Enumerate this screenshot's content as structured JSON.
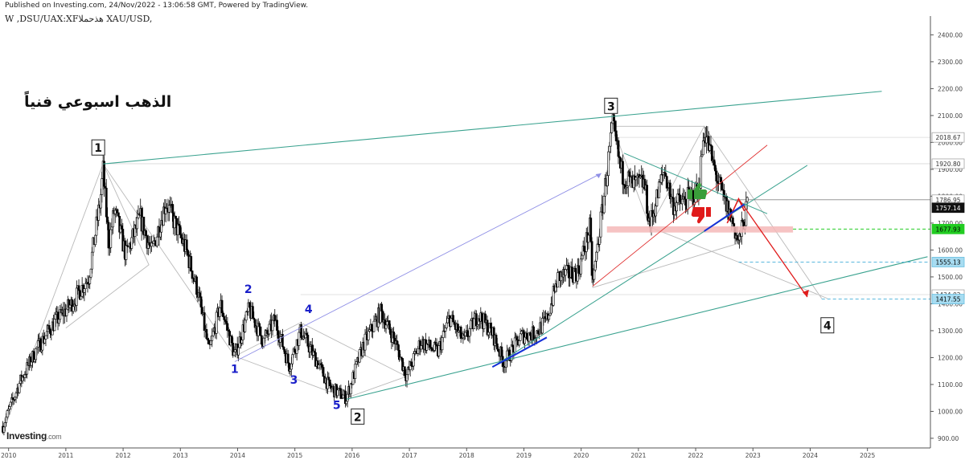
{
  "header": {
    "published": "Published on Investing.com, 24/Nov/2022 - 13:06:58 GMT, Powered by TradingView.",
    "symbol": "W ,DSU/UAX:XFهذحملا XAU/USD,"
  },
  "annotation_title": "الذهب اسبوعي فنياً",
  "logo": {
    "main": "Investing",
    "suffix": ".com"
  },
  "icons": {
    "thumbs_up": "thumbs-up-icon",
    "thumbs_down": "thumbs-down-icon"
  },
  "colors": {
    "candle_up": "#ffffff",
    "candle_down": "#000000",
    "channel": "#3aa28f",
    "wave_label": "#1a1fc9",
    "forecast_arrow": "#e01b1b",
    "support_band": "#f4b8b8",
    "blue_trend": "#1530d8",
    "green_level": "#22cc22",
    "cyan_level": "#5ab8dd",
    "thumbs_up": "#3a9d3a",
    "thumbs_down": "#e01b1b"
  },
  "chart_data": {
    "type": "candlestick",
    "title": "",
    "xlabel": "",
    "ylabel": "",
    "x_ticks": [
      "2010",
      "2011",
      "2012",
      "2013",
      "2014",
      "2015",
      "2016",
      "2017",
      "2018",
      "2019",
      "2020",
      "2021",
      "2022",
      "2023",
      "2024",
      "2025"
    ],
    "y_ticks": [
      900,
      1000,
      1100,
      1200,
      1300,
      1400,
      1500,
      1600,
      1700,
      1800,
      1900,
      2000,
      2100,
      2200,
      2300,
      2400
    ],
    "ylim": [
      870,
      2440
    ],
    "xlim": [
      2009.85,
      2026.1
    ],
    "grid": false,
    "price_path": [
      [
        2009.9,
        945
      ],
      [
        2010.2,
        1110
      ],
      [
        2010.5,
        1235
      ],
      [
        2010.8,
        1330
      ],
      [
        2011.1,
        1400
      ],
      [
        2011.4,
        1500
      ],
      [
        2011.6,
        1780
      ],
      [
        2011.65,
        1895
      ],
      [
        2011.75,
        1620
      ],
      [
        2011.85,
        1750
      ],
      [
        2012.05,
        1580
      ],
      [
        2012.3,
        1720
      ],
      [
        2012.5,
        1590
      ],
      [
        2012.75,
        1780
      ],
      [
        2012.9,
        1700
      ],
      [
        2013.1,
        1600
      ],
      [
        2013.3,
        1450
      ],
      [
        2013.5,
        1220
      ],
      [
        2013.7,
        1400
      ],
      [
        2013.95,
        1205
      ],
      [
        2014.2,
        1380
      ],
      [
        2014.45,
        1260
      ],
      [
        2014.65,
        1340
      ],
      [
        2014.9,
        1170
      ],
      [
        2015.1,
        1300
      ],
      [
        2015.4,
        1180
      ],
      [
        2015.6,
        1090
      ],
      [
        2015.9,
        1050
      ],
      [
        2016.2,
        1250
      ],
      [
        2016.5,
        1370
      ],
      [
        2016.75,
        1260
      ],
      [
        2016.95,
        1130
      ],
      [
        2017.2,
        1260
      ],
      [
        2017.5,
        1220
      ],
      [
        2017.7,
        1350
      ],
      [
        2017.95,
        1260
      ],
      [
        2018.2,
        1360
      ],
      [
        2018.45,
        1290
      ],
      [
        2018.65,
        1180
      ],
      [
        2018.95,
        1280
      ],
      [
        2019.2,
        1290
      ],
      [
        2019.4,
        1340
      ],
      [
        2019.6,
        1500
      ],
      [
        2019.95,
        1520
      ],
      [
        2020.15,
        1680
      ],
      [
        2020.2,
        1470
      ],
      [
        2020.35,
        1720
      ],
      [
        2020.55,
        2060
      ],
      [
        2020.7,
        1890
      ],
      [
        2020.9,
        1840
      ],
      [
        2021.1,
        1850
      ],
      [
        2021.2,
        1690
      ],
      [
        2021.45,
        1900
      ],
      [
        2021.6,
        1770
      ],
      [
        2021.8,
        1780
      ],
      [
        2022.05,
        1820
      ],
      [
        2022.15,
        2050
      ],
      [
        2022.3,
        1920
      ],
      [
        2022.45,
        1810
      ],
      [
        2022.65,
        1700
      ],
      [
        2022.75,
        1625
      ],
      [
        2022.9,
        1760
      ]
    ],
    "waves_primary": [
      {
        "label": "1",
        "x": 2011.65,
        "y": 1920
      },
      {
        "label": "2",
        "x": 2015.9,
        "y": 1045
      },
      {
        "label": "3",
        "x": 2020.55,
        "y": 2075
      },
      {
        "label": "4",
        "x": 2024.3,
        "y": 1420
      }
    ],
    "waves_minor": [
      {
        "label": "1",
        "x": 2013.95,
        "y": 1185
      },
      {
        "label": "2",
        "x": 2014.2,
        "y": 1405
      },
      {
        "label": "3",
        "x": 2014.9,
        "y": 1150
      },
      {
        "label": "4",
        "x": 2015.1,
        "y": 1330
      },
      {
        "label": "5",
        "x": 2015.9,
        "y": 1050
      }
    ],
    "price_labels": [
      {
        "value": "2018.67",
        "y": 2018.67,
        "style": "plain"
      },
      {
        "value": "1920.80",
        "y": 1920.8,
        "style": "plain"
      },
      {
        "value": "1786.95",
        "y": 1786.95,
        "style": "plain"
      },
      {
        "value": "1757.14",
        "y": 1757.14,
        "style": "dark"
      },
      {
        "value": "1677.93",
        "y": 1677.93,
        "style": "green"
      },
      {
        "value": "1555.13",
        "y": 1555.13,
        "style": "cyan"
      },
      {
        "value": "1434.02",
        "y": 1434.02,
        "style": "plain"
      },
      {
        "value": "1417.55",
        "y": 1417.55,
        "style": "cyan"
      }
    ],
    "support_zone": {
      "x_from": 2020.45,
      "x_to": 2023.7,
      "y_low": 1665,
      "y_high": 1688
    },
    "channel_upper": [
      [
        2011.65,
        1920
      ],
      [
        2025.25,
        2190
      ]
    ],
    "channel_lower": [
      [
        2015.9,
        1045
      ],
      [
        2026.05,
        1575
      ]
    ],
    "blue_trend": [
      [
        2018.45,
        1165
      ],
      [
        2019.4,
        1275
      ]
    ],
    "dashed_levels": [
      {
        "y": 1677.93,
        "x_from": 2023.7,
        "color": "green"
      },
      {
        "y": 1555.13,
        "x_from": 2022.75,
        "color": "cyan"
      },
      {
        "y": 1417.55,
        "x_from": 2024.2,
        "color": "cyan"
      }
    ]
  }
}
